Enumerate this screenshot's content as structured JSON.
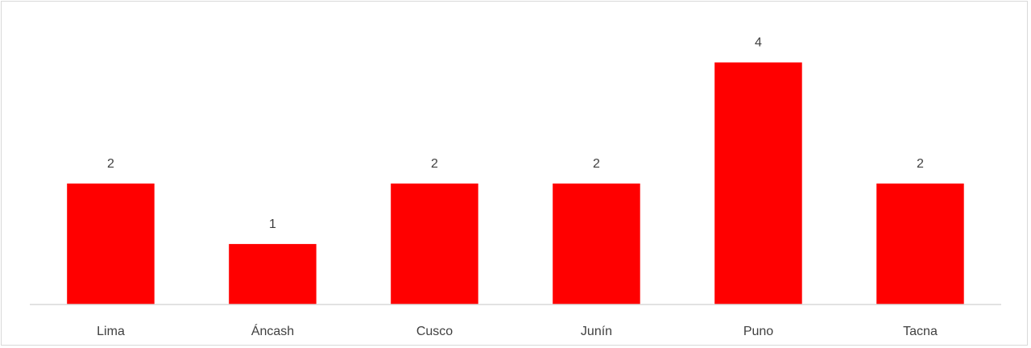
{
  "chart_data": {
    "type": "bar",
    "categories": [
      "Lima",
      "Áncash",
      "Cusco",
      "Junín",
      "Puno",
      "Tacna"
    ],
    "values": [
      2,
      1,
      2,
      2,
      4,
      2
    ],
    "title": "",
    "xlabel": "",
    "ylabel": "",
    "ylim": [
      0,
      4
    ],
    "grid": false,
    "data_labels": true,
    "colors": {
      "bar": "#ff0000",
      "axis": "#d9d9d9",
      "text": "#404040"
    }
  }
}
